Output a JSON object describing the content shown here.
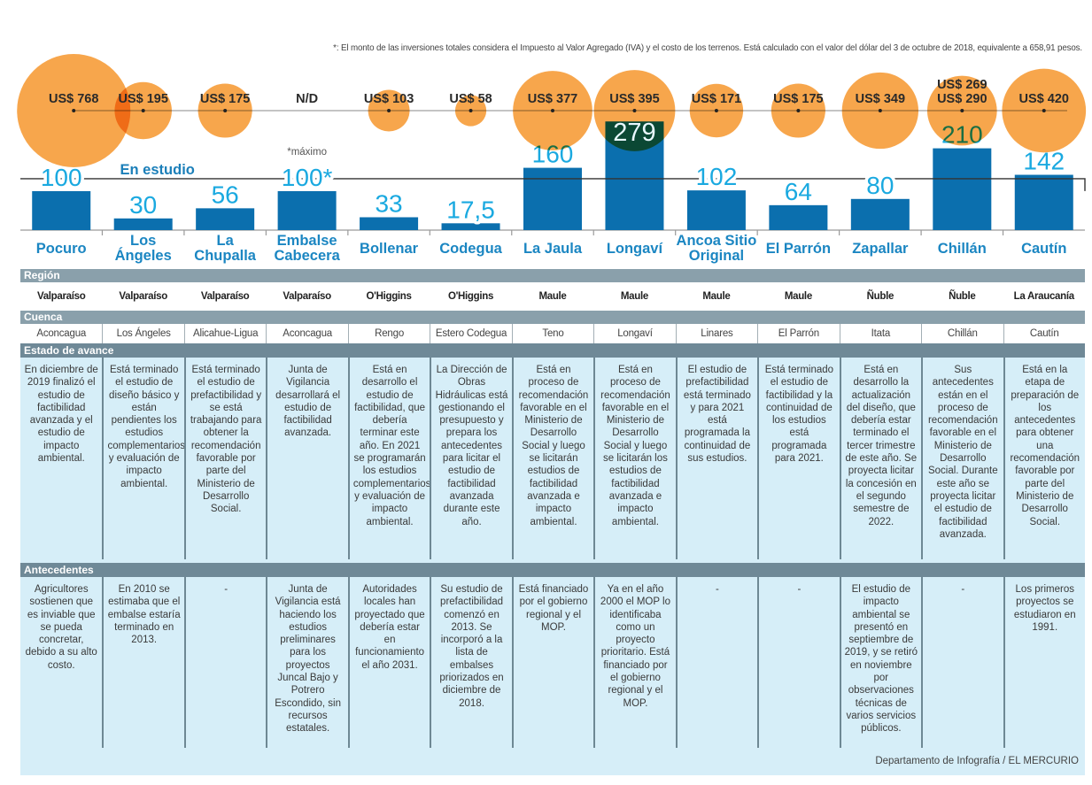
{
  "footnote": "*: El monto de las inversiones totales considera el Impuesto al Valor Agregado (IVA) y el costo de los terrenos. Está calculado con el valor del dólar del 3 de octubre de 2018, equivalente a  658,91 pesos.",
  "credit": "Departamento de Infografía / EL MERCURIO",
  "chart_data": {
    "type": "bar",
    "title": "",
    "xlabel": "",
    "ylabel": "",
    "ylim": [
      0,
      300
    ],
    "grid": false,
    "categories": [
      "Pocuro",
      "Los\nÁngeles",
      "La\nChupalla",
      "Embalse\nCabecera",
      "Bollenar",
      "Codegua",
      "La Jaula",
      "Longaví",
      "Ancoa Sitio\nOriginal",
      "El Parrón",
      "Zapallar",
      "Chillán",
      "Cautín"
    ],
    "bars": {
      "values": [
        100,
        30,
        56,
        100,
        33,
        17.5,
        160,
        279,
        102,
        64,
        80,
        210,
        142
      ],
      "labels": [
        "100",
        "30",
        "56",
        "100*",
        "33",
        "17,5",
        "160",
        "279",
        "102",
        "64",
        "80",
        "210",
        "142"
      ]
    },
    "bubbles": [
      {
        "labels": [
          "US$ 768"
        ],
        "value": 768
      },
      {
        "labels": [
          "US$ 195"
        ],
        "value": 195
      },
      {
        "labels": [
          "US$ 175"
        ],
        "value": 175
      },
      {
        "labels": [
          "N/D"
        ],
        "value": null
      },
      {
        "labels": [
          "US$ 103"
        ],
        "value": 103
      },
      {
        "labels": [
          "US$ 58"
        ],
        "value": 58
      },
      {
        "labels": [
          "US$ 377"
        ],
        "value": 377
      },
      {
        "labels": [
          "US$ 395"
        ],
        "value": 395
      },
      {
        "labels": [
          "US$ 171"
        ],
        "value": 171
      },
      {
        "labels": [
          "US$ 175"
        ],
        "value": 175
      },
      {
        "labels": [
          "US$ 349"
        ],
        "value": 349
      },
      {
        "labels": [
          "US$ 269",
          "US$ 290"
        ],
        "value": 290,
        "value_min": 269
      },
      {
        "labels": [
          "US$ 420"
        ],
        "value": 420
      }
    ],
    "guide_line_value": 132,
    "annotations": {
      "en_estudio": "En estudio",
      "maximo_note": "*máximo"
    },
    "colors": {
      "bar": "#0B6FAE",
      "bar_label": "#1AA9E0",
      "bubble": "#F7A64C",
      "bubble_label": "#2A2A2A",
      "category": "#1B86C2",
      "annotation": "#1B7FB9"
    }
  },
  "table": {
    "sections": {
      "region": "Región",
      "cuenca": "Cuenca",
      "estado": "Estado de avance",
      "antecedentes": "Antecedentes"
    },
    "rows": [
      {
        "region": "Valparaíso",
        "cuenca": "Aconcagua",
        "estado": "En diciembre de 2019 finalizó el estudio de factibilidad avanzada y el estudio de impacto ambiental.",
        "antecedentes": "Agricultores sostienen que es inviable que se pueda concretar, debido a su alto costo."
      },
      {
        "region": "Valparaíso",
        "cuenca": "Los Ángeles",
        "estado": "Está terminado el estudio de diseño básico y están pendientes los estudios complementarios y evaluación de impacto ambiental.",
        "antecedentes": "En 2010 se estimaba que el embalse estaría terminado en 2013."
      },
      {
        "region": "Valparaíso",
        "cuenca": "Alicahue-Ligua",
        "estado": "Está terminado el estudio de prefactibilidad y se está trabajando para obtener la recomendación favorable por parte del Ministerio de Desarrollo Social.",
        "antecedentes": "-"
      },
      {
        "region": "Valparaíso",
        "cuenca": "Aconcagua",
        "estado": "Junta de Vigilancia desarrollará el estudio de factibilidad avanzada.",
        "antecedentes": "Junta de Vigilancia está haciendo los estudios preliminares para los proyectos Juncal Bajo y Potrero Escondido, sin recursos estatales."
      },
      {
        "region": "O'Higgins",
        "cuenca": "Rengo",
        "estado": "Está en desarrollo el estudio de factibilidad, que debería terminar este año. En 2021 se programarán los estudios complementarios y evaluación de impacto ambiental.",
        "antecedentes": "Autoridades locales han proyectado que debería estar en funcionamiento el año 2031."
      },
      {
        "region": "O'Higgins",
        "cuenca": "Estero Codegua",
        "estado": "La Dirección de Obras Hidráulicas está gestionando el presupuesto y prepara los antecedentes para licitar el estudio de factibilidad avanzada durante este año.",
        "antecedentes": "Su estudio de prefactibilidad comenzó en 2013. Se incorporó a la lista de embalses priorizados en diciembre de 2018."
      },
      {
        "region": "Maule",
        "cuenca": "Teno",
        "estado": "Está en proceso de recomendación favorable en el Ministerio de Desarrollo Social y luego se licitarán estudios de factibilidad avanzada e impacto ambiental.",
        "antecedentes": "Está financiado por el gobierno regional y el MOP."
      },
      {
        "region": "Maule",
        "cuenca": "Longaví",
        "estado": "Está en proceso de recomendación favorable en el Ministerio de Desarrollo Social y luego se licitarán los estudios de factibilidad avanzada e impacto ambiental.",
        "antecedentes": "Ya en el año 2000 el MOP lo identificaba como un proyecto prioritario. Está financiado por el gobierno regional y el MOP."
      },
      {
        "region": "Maule",
        "cuenca": "Linares",
        "estado": "El estudio de prefactibilidad está terminado y para 2021 está programada la continuidad de sus estudios.",
        "antecedentes": "-"
      },
      {
        "region": "Maule",
        "cuenca": "El Parrón",
        "estado": "Está terminado el estudio de factibilidad y la continuidad de los estudios está programada para 2021.",
        "antecedentes": "-"
      },
      {
        "region": "Ñuble",
        "cuenca": "Itata",
        "estado": "Está en desarrollo la actualización del diseño, que debería estar terminado el tercer trimestre de este año. Se proyecta licitar la concesión en el segundo semestre de 2022.",
        "antecedentes": "El estudio de impacto ambiental se presentó en septiembre de 2019, y se retiró en noviembre por observaciones técnicas de varios servicios públicos."
      },
      {
        "region": "Ñuble",
        "cuenca": "Chillán",
        "estado": "Sus antecedentes están en el proceso de recomendación favorable en el Ministerio de Desarrollo Social. Durante este año se proyecta licitar el estudio de factibilidad avanzada.",
        "antecedentes": "-"
      },
      {
        "region": "La Araucanía",
        "cuenca": "Cautín",
        "estado": "Está en la etapa de preparación de los antecedentes para obtener una recomendación favorable por parte del Ministerio de Desarrollo Social.",
        "antecedentes": "Los primeros proyectos se estudiaron en 1991."
      }
    ]
  }
}
